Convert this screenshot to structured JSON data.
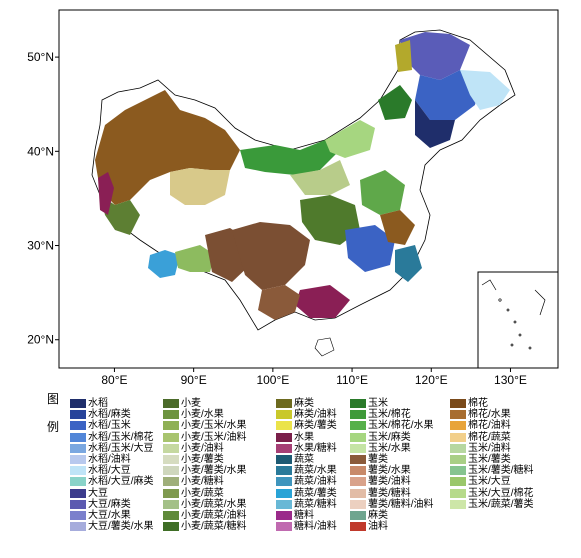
{
  "map": {
    "lat_labels": [
      "50°N",
      "40°N",
      "30°N",
      "20°N"
    ],
    "lon_labels": [
      "80°E",
      "90°E",
      "100°E",
      "110°E",
      "120°E",
      "130°E"
    ],
    "lat_values": [
      50,
      40,
      30,
      20
    ],
    "lon_values": [
      80,
      90,
      100,
      110,
      120,
      130
    ],
    "extent": {
      "lon_min": 73,
      "lon_max": 136,
      "lat_min": 17,
      "lat_max": 55
    },
    "inset": "south-china-sea islands, bottom-right"
  },
  "legend": {
    "title_chars": [
      "图",
      "例"
    ],
    "columns": [
      [
        {
          "label": "水稻",
          "color": "#1f2e6b"
        },
        {
          "label": "水稻/麻类",
          "color": "#27439a"
        },
        {
          "label": "水稻/玉米",
          "color": "#3b63c4"
        },
        {
          "label": "水稻/玉米/棉花",
          "color": "#5286d8"
        },
        {
          "label": "水稻/玉米/大豆",
          "color": "#7aa7e0"
        },
        {
          "label": "水稻/油料",
          "color": "#b8c9ee"
        },
        {
          "label": "水稻/大豆",
          "color": "#bfe4f7"
        },
        {
          "label": "水稻/大豆/麻类",
          "color": "#89d3c9"
        },
        {
          "label": "大豆",
          "color": "#3c3c8c"
        },
        {
          "label": "大豆/麻类",
          "color": "#5c5ab0"
        },
        {
          "label": "大豆/水果",
          "color": "#7b80cc"
        },
        {
          "label": "大豆/薯类/水果",
          "color": "#a6acdc"
        }
      ],
      [
        {
          "label": "小麦",
          "color": "#4b6b2a"
        },
        {
          "label": "小麦/水果",
          "color": "#6d9440"
        },
        {
          "label": "小麦/玉米/水果",
          "color": "#8fb055"
        },
        {
          "label": "小麦/玉米/油料",
          "color": "#a8c46e"
        },
        {
          "label": "小麦/油料",
          "color": "#c5d8a0"
        },
        {
          "label": "小麦/薯类",
          "color": "#d6dcc0"
        },
        {
          "label": "小麦/薯类/水果",
          "color": "#cfd7bd"
        },
        {
          "label": "小麦/糖料",
          "color": "#9faf7a"
        },
        {
          "label": "小麦/蔬菜",
          "color": "#7f9a4f"
        },
        {
          "label": "小麦/蔬菜/水果",
          "color": "#a3c087"
        },
        {
          "label": "小麦/蔬菜/油料",
          "color": "#5f8a3a"
        },
        {
          "label": "小麦/蔬菜/糖料",
          "color": "#3f6e26"
        }
      ],
      [
        {
          "label": "麻类",
          "color": "#6d6a1f"
        },
        {
          "label": "麻类/油料",
          "color": "#c9c82a"
        },
        {
          "label": "麻类/薯类",
          "color": "#ebe34a"
        },
        {
          "label": "水果",
          "color": "#7a1f4a"
        },
        {
          "label": "水果/糖料",
          "color": "#a63f75"
        },
        {
          "label": "蔬菜",
          "color": "#1d5a73"
        },
        {
          "label": "蔬菜/水果",
          "color": "#2a7a9a"
        },
        {
          "label": "蔬菜/油料",
          "color": "#3f95bd"
        },
        {
          "label": "蔬菜/薯类",
          "color": "#29a3d6"
        },
        {
          "label": "蔬菜/糖料",
          "color": "#68b8d6"
        },
        {
          "label": "糖料",
          "color": "#9a2a8a"
        },
        {
          "label": "糖料/油料",
          "color": "#c06ab0"
        }
      ],
      [
        {
          "label": "玉米",
          "color": "#2a7a2a"
        },
        {
          "label": "玉米/棉花",
          "color": "#3f9a3a"
        },
        {
          "label": "玉米/棉花/水果",
          "color": "#56b04a"
        },
        {
          "label": "玉米/麻类",
          "color": "#a6d680"
        },
        {
          "label": "玉米/水果",
          "color": "#c5e4a5"
        },
        {
          "label": "薯类",
          "color": "#8a5a3a"
        },
        {
          "label": "薯类/水果",
          "color": "#c88a6a"
        },
        {
          "label": "薯类/油料",
          "color": "#d9a28a"
        },
        {
          "label": "薯类/糖料",
          "color": "#e2bca6"
        },
        {
          "label": "薯类/糖料/油料",
          "color": "#ecd0c0"
        },
        {
          "label": "麻类",
          "color": "#6fa58f"
        },
        {
          "label": "油料",
          "color": "#c0392b"
        }
      ],
      [
        {
          "label": "棉花",
          "color": "#7a4a1a"
        },
        {
          "label": "棉花/水果",
          "color": "#a86d2f"
        },
        {
          "label": "棉花/油料",
          "color": "#e8a43a"
        },
        {
          "label": "棉花/蔬菜",
          "color": "#f2cf8a"
        },
        {
          "label": "玉米/油料",
          "color": "#b7d7a0"
        },
        {
          "label": "玉米/薯类",
          "color": "#a9cf86"
        },
        {
          "label": "玉米/薯类/糖料",
          "color": "#86c490"
        },
        {
          "label": "玉米/大豆",
          "color": "#9ac76a"
        },
        {
          "label": "玉米/大豆/棉花",
          "color": "#b6da8a"
        },
        {
          "label": "玉米/蔬菜/薯类",
          "color": "#cde6a8"
        }
      ]
    ]
  }
}
